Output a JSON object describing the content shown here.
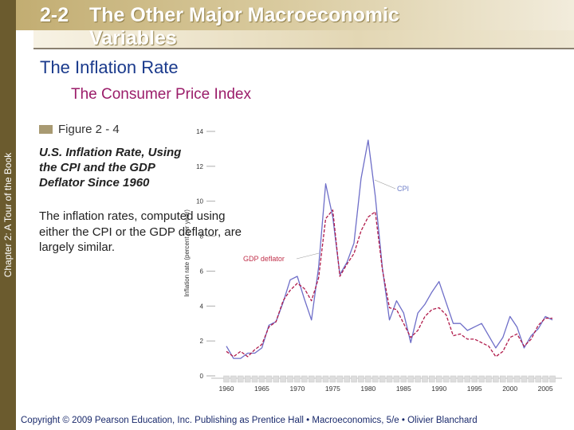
{
  "slide": {
    "title_number": "2-2",
    "title_text": "The Other Major Macroeconomic Variables",
    "heading": "The Inflation Rate",
    "subheading": "The Consumer Price Index",
    "figure_label": "Figure 2 - 4",
    "caption_title": "U.S. Inflation Rate, Using the CPI and the GDP Deflator Since 1960",
    "caption_body": "The inflation rates, computed using either the CPI or the GDP deflator, are largely similar.",
    "side_label": "Chapter 2: A Tour of the Book",
    "footer": "Copyright © 2009 Pearson Education, Inc. Publishing as Prentice Hall • Macroeconomics, 5/e • Olivier Blanchard"
  },
  "colors": {
    "sidebar": "#6b5b2e",
    "heading": "#1a3a8c",
    "subheading": "#9b1d6a",
    "cpi_line": "#6e6ec8",
    "gdp_line": "#b01a4a",
    "label_cpi": "#6e7ec8",
    "label_gdp": "#c0304a"
  },
  "chart_data": {
    "type": "line",
    "ylabel": "Inflation rate (percent per year)",
    "xlabel": "",
    "ylim": [
      0,
      14
    ],
    "xlim": [
      1960,
      2006
    ],
    "y_ticks": [
      "0",
      "2",
      "4",
      "6",
      "8",
      "10",
      "12",
      "14"
    ],
    "x_ticks": [
      "1960",
      "1965",
      "1970",
      "1975",
      "1980",
      "1985",
      "1990",
      "1995",
      "2000",
      "2005"
    ],
    "series": [
      {
        "name": "CPI",
        "x": [
          1960,
          1961,
          1962,
          1963,
          1964,
          1965,
          1966,
          1967,
          1968,
          1969,
          1970,
          1971,
          1972,
          1973,
          1974,
          1975,
          1976,
          1977,
          1978,
          1979,
          1980,
          1981,
          1982,
          1983,
          1984,
          1985,
          1986,
          1987,
          1988,
          1989,
          1990,
          1991,
          1992,
          1993,
          1994,
          1995,
          1996,
          1997,
          1998,
          1999,
          2000,
          2001,
          2002,
          2003,
          2004,
          2005,
          2006
        ],
        "values": [
          1.7,
          1.0,
          1.0,
          1.3,
          1.3,
          1.6,
          2.9,
          3.1,
          4.2,
          5.5,
          5.7,
          4.4,
          3.2,
          6.2,
          11.0,
          9.1,
          5.8,
          6.5,
          7.6,
          11.3,
          13.5,
          10.3,
          6.2,
          3.2,
          4.3,
          3.6,
          1.9,
          3.6,
          4.1,
          4.8,
          5.4,
          4.2,
          3.0,
          3.0,
          2.6,
          2.8,
          3.0,
          2.3,
          1.6,
          2.2,
          3.4,
          2.8,
          1.6,
          2.3,
          2.7,
          3.4,
          3.2
        ]
      },
      {
        "name": "GDP deflator",
        "x": [
          1960,
          1961,
          1962,
          1963,
          1964,
          1965,
          1966,
          1967,
          1968,
          1969,
          1970,
          1971,
          1972,
          1973,
          1974,
          1975,
          1976,
          1977,
          1978,
          1979,
          1980,
          1981,
          1982,
          1983,
          1984,
          1985,
          1986,
          1987,
          1988,
          1989,
          1990,
          1991,
          1992,
          1993,
          1994,
          1995,
          1996,
          1997,
          1998,
          1999,
          2000,
          2001,
          2002,
          2003,
          2004,
          2005,
          2006
        ],
        "values": [
          1.4,
          1.1,
          1.4,
          1.1,
          1.5,
          1.8,
          2.8,
          3.1,
          4.3,
          4.9,
          5.3,
          5.0,
          4.3,
          5.6,
          9.0,
          9.5,
          5.7,
          6.4,
          7.0,
          8.3,
          9.1,
          9.4,
          6.1,
          3.9,
          3.8,
          3.0,
          2.2,
          2.6,
          3.4,
          3.8,
          3.9,
          3.5,
          2.3,
          2.4,
          2.1,
          2.1,
          1.9,
          1.7,
          1.1,
          1.4,
          2.2,
          2.4,
          1.7,
          2.1,
          2.9,
          3.3,
          3.3
        ]
      }
    ],
    "annotations": [
      "CPI",
      "GDP deflator"
    ],
    "grid": false
  }
}
